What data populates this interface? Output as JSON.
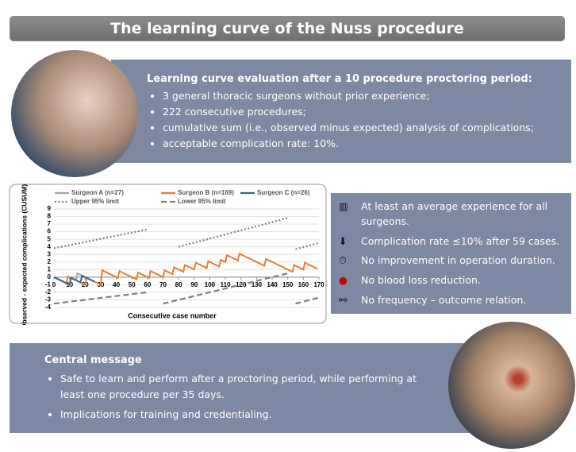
{
  "title": "The learning curve of the Nuss procedure",
  "summary": {
    "heading": "Learning curve evaluation after a 10 procedure proctoring period:",
    "items": [
      "3 general thoracic surgeons without prior experience;",
      "222 consecutive procedures;",
      "cumulative sum (i.e., observed minus expected) analysis of complications;",
      "acceptable complication rate: 10%."
    ]
  },
  "chart_data": {
    "type": "line",
    "xlabel": "Consecutive case number",
    "ylabel": "Observed - expected complications (CUSUM)",
    "xlim": [
      0,
      170
    ],
    "xticks": [
      0,
      10,
      20,
      30,
      40,
      50,
      60,
      70,
      80,
      90,
      100,
      110,
      120,
      130,
      140,
      150,
      160,
      170
    ],
    "ylim": [
      -4,
      9
    ],
    "yticks": [
      -4,
      -3,
      -2,
      -1,
      0,
      1,
      2,
      3,
      4,
      5,
      6,
      7,
      8,
      9
    ],
    "grid": true,
    "series": [
      {
        "name": "Surgeon A (n=27)",
        "color": "#a6a6a6",
        "style": "solid",
        "x": [
          0,
          10,
          11,
          14,
          15,
          27
        ],
        "values": [
          0,
          -1.0,
          -0.1,
          -0.4,
          0.5,
          -0.7
        ]
      },
      {
        "name": "Surgeon B (n=169)",
        "color": "#ed7d31",
        "style": "solid",
        "x": [
          0,
          8,
          9,
          20,
          21,
          30,
          31,
          41,
          42,
          53,
          54,
          61,
          62,
          70,
          71,
          76,
          77,
          83,
          84,
          90,
          91,
          98,
          99,
          106,
          107,
          110,
          111,
          118,
          119,
          135,
          136,
          153,
          154,
          160,
          161,
          169
        ],
        "values": [
          0,
          -0.8,
          0.1,
          -1.0,
          -0.1,
          -1.0,
          0.9,
          -0.1,
          0.8,
          -0.3,
          0.6,
          -0.1,
          0.8,
          0,
          0.9,
          0.4,
          1.3,
          0.7,
          1.6,
          1.0,
          1.9,
          1.2,
          2.1,
          1.4,
          2.3,
          2.0,
          2.9,
          2.2,
          3.1,
          1.5,
          2.4,
          0.7,
          1.6,
          1.0,
          1.9,
          1.1
        ]
      },
      {
        "name": "Surgeon C (n=26)",
        "color": "#3a6889",
        "style": "solid",
        "x": [
          0,
          10,
          11,
          17,
          18,
          26
        ],
        "values": [
          0,
          -1.0,
          -0.1,
          -0.7,
          0.2,
          -0.6
        ]
      },
      {
        "name": "Upper 95% limit",
        "color": "#808080",
        "style": "dotted",
        "x": [
          0,
          60,
          70,
          80,
          150,
          152,
          155,
          170
        ],
        "values": [
          3.8,
          6.3,
          null,
          4.0,
          7.8,
          null,
          3.7,
          4.5
        ]
      },
      {
        "name": "Lower 95% limit",
        "color": "#808080",
        "style": "dashed",
        "x": [
          0,
          60,
          65,
          70,
          150,
          152,
          155,
          170
        ],
        "values": [
          -3.5,
          -2.0,
          null,
          -3.5,
          0.5,
          null,
          -3.5,
          -2.7
        ]
      }
    ]
  },
  "findings": [
    "At least an average experience for all surgeons.",
    "Complication rate ≤10% after 59 cases.",
    "No improvement in operation duration.",
    "No blood loss reduction.",
    "No frequency – outcome relation."
  ],
  "message": {
    "heading": "Central message",
    "items": [
      "Safe to learn and perform after a proctoring period, while performing at least one procedure per 35 days.",
      "Implications for training and credentialing."
    ]
  }
}
